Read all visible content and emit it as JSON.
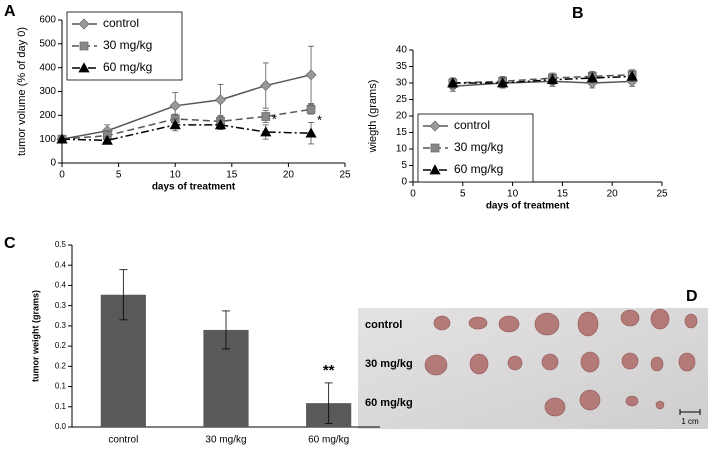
{
  "chart_data": [
    {
      "type": "line",
      "panel": "A",
      "xlabel": "days of treatment",
      "ylabel": "tumor volume (% of day 0)",
      "x": [
        0,
        4,
        10,
        14,
        18,
        22
      ],
      "xlim": [
        0,
        25
      ],
      "xticks": [
        0,
        5,
        10,
        15,
        20,
        25
      ],
      "ylim": [
        0,
        600
      ],
      "yticks": [
        0,
        100,
        200,
        300,
        400,
        500,
        600
      ],
      "legend": "upper left",
      "series": [
        {
          "name": "control",
          "color": "#999999",
          "marker": "diamond",
          "line_style": "solid",
          "values": [
            100,
            135,
            240,
            265,
            325,
            370
          ],
          "errors": [
            0,
            25,
            55,
            65,
            95,
            120
          ]
        },
        {
          "name": "30 mg/kg",
          "color": "#888888",
          "marker": "square",
          "line_style": "dashed",
          "values": [
            100,
            115,
            185,
            175,
            195,
            225
          ],
          "errors": [
            0,
            20,
            20,
            20,
            25,
            20
          ]
        },
        {
          "name": "60 mg/kg",
          "color": "#000000",
          "marker": "triangle",
          "line_style": "dashdot",
          "values": [
            100,
            95,
            160,
            160,
            130,
            125
          ],
          "errors": [
            0,
            15,
            25,
            20,
            30,
            45
          ]
        }
      ],
      "annotations": [
        {
          "text": "*",
          "x": 18
        },
        {
          "text": "*",
          "x": 22
        }
      ]
    },
    {
      "type": "line",
      "panel": "B",
      "xlabel": "days of treatment",
      "ylabel": "wiegth (grams)",
      "x": [
        4,
        9,
        14,
        18,
        22
      ],
      "xlim": [
        0,
        25
      ],
      "xticks": [
        0,
        5,
        10,
        15,
        20,
        25
      ],
      "ylim": [
        0,
        40
      ],
      "yticks": [
        0,
        5,
        10,
        15,
        20,
        25,
        30,
        35,
        40
      ],
      "legend": "lower left",
      "series": [
        {
          "name": "control",
          "color": "#999999",
          "marker": "diamond",
          "line_style": "solid",
          "values": [
            29,
            30,
            30.5,
            30,
            30.5
          ],
          "errors": [
            1.5,
            1.5,
            1.5,
            1.5,
            1.5
          ]
        },
        {
          "name": "30 mg/kg",
          "color": "#888888",
          "marker": "square",
          "line_style": "dashed",
          "values": [
            30,
            30.5,
            31.5,
            32,
            32.5
          ],
          "errors": [
            1.5,
            1.5,
            1.5,
            1.5,
            1.5
          ]
        },
        {
          "name": "60 mg/kg",
          "color": "#000000",
          "marker": "triangle",
          "line_style": "dashdot",
          "values": [
            30,
            30,
            31,
            31.5,
            32
          ],
          "errors": [
            1.5,
            1.5,
            1.5,
            1.5,
            1.5
          ]
        }
      ]
    },
    {
      "type": "bar",
      "panel": "C",
      "ylabel": "tumor weight (grams)",
      "categories": [
        "control",
        "30 mg/kg",
        "60 mg/kg"
      ],
      "values": [
        0.327,
        0.24,
        0.059
      ],
      "errors": [
        0.062,
        0.047,
        0.05
      ],
      "color": "#595959",
      "ylim": [
        0,
        0.45
      ],
      "yticks": [
        {
          "value": 0,
          "label": "0.0"
        },
        {
          "value": 0.05,
          "label": "0.1"
        },
        0.1,
        {
          "value": 0.15,
          "label": "0.2"
        },
        0.2,
        {
          "value": 0.25,
          "label": "0.3"
        },
        0.3,
        {
          "value": 0.35,
          "label": "0.4"
        },
        0.4,
        {
          "value": 0.45,
          "label": "0.5"
        }
      ],
      "annotations": [
        {
          "text": "**",
          "category": "60 mg/kg"
        }
      ]
    }
  ],
  "photo": {
    "panel": "D",
    "rows": [
      "control",
      "30 mg/kg",
      "60 mg/kg"
    ],
    "scale_label": "1 cm"
  }
}
